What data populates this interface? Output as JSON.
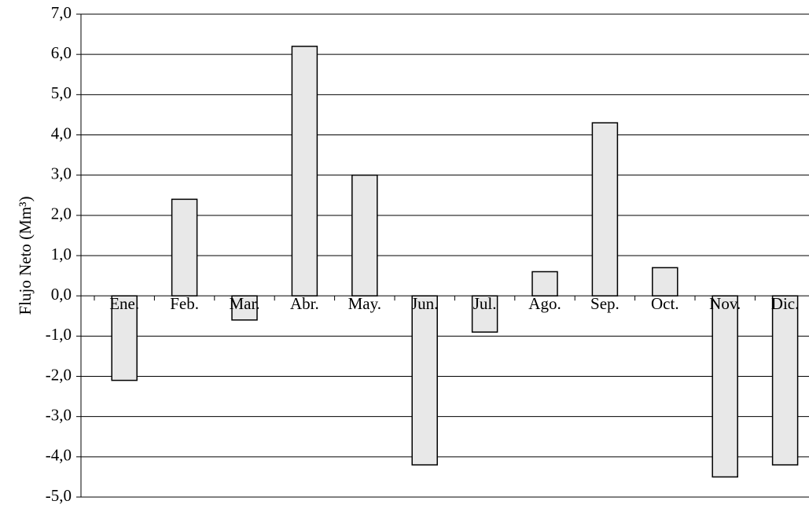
{
  "chart_data": {
    "type": "bar",
    "y_label": "Flujo Neto (Mm³)",
    "categories": [
      "Ene.",
      "Feb.",
      "Mar.",
      "Abr.",
      "May.",
      "Jun.",
      "Jul.",
      "Ago.",
      "Sep.",
      "Oct.",
      "Nov.",
      "Dic."
    ],
    "values": [
      -2.1,
      2.4,
      -0.6,
      6.2,
      3.0,
      -4.2,
      -0.9,
      0.6,
      4.3,
      0.7,
      -4.5,
      -4.2
    ],
    "color": "#e8e8e8",
    "ylim": [
      -5,
      7
    ],
    "yticks": [
      {
        "value": -5,
        "label": "-5,0"
      },
      {
        "value": -4,
        "label": "-4,0"
      },
      {
        "value": -3,
        "label": "-3,0"
      },
      {
        "value": -2,
        "label": "-2,0"
      },
      {
        "value": -1,
        "label": "-1,0"
      },
      {
        "value": 0,
        "label": "0,0"
      },
      {
        "value": 1,
        "label": "1,0"
      },
      {
        "value": 2,
        "label": "2,0"
      },
      {
        "value": 3,
        "label": "3,0"
      },
      {
        "value": 4,
        "label": "4,0"
      },
      {
        "value": 5,
        "label": "5,0"
      },
      {
        "value": 6,
        "label": "6,0"
      },
      {
        "value": 7,
        "label": "7,0"
      }
    ],
    "grid": true
  }
}
